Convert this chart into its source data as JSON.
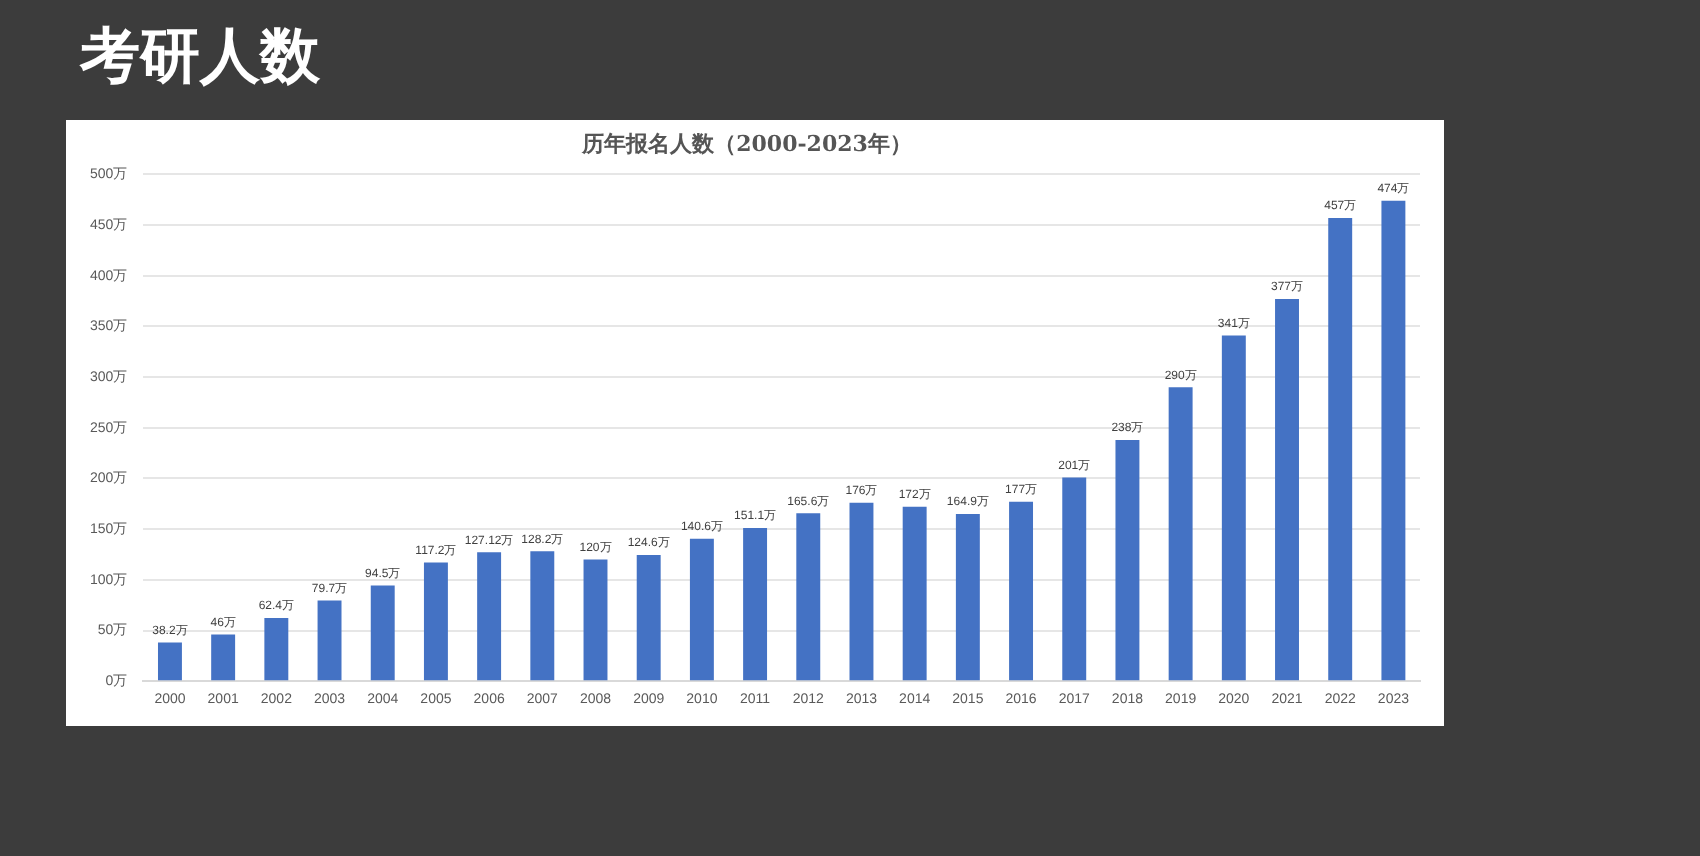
{
  "chart_data": {
    "type": "bar",
    "title": "考研人数",
    "subtitle": "历年报名人数（2000-2023年）",
    "categories": [
      "2000",
      "2001",
      "2002",
      "2003",
      "2004",
      "2005",
      "2006",
      "2007",
      "2008",
      "2009",
      "2010",
      "2011",
      "2012",
      "2013",
      "2014",
      "2015",
      "2016",
      "2017",
      "2018",
      "2019",
      "2020",
      "2021",
      "2022",
      "2023"
    ],
    "values": [
      38.2,
      46,
      62.4,
      79.7,
      94.5,
      117.2,
      127.12,
      128.2,
      120,
      124.6,
      140.6,
      151.1,
      165.6,
      176,
      172,
      164.9,
      177,
      201,
      238,
      290,
      341,
      377,
      457,
      474
    ],
    "value_labels": [
      "38.2万",
      "46万",
      "62.4万",
      "79.7万",
      "94.5万",
      "117.2万",
      "127.12万",
      "128.2万",
      "120万",
      "124.6万",
      "140.6万",
      "151.1万",
      "165.6万",
      "176万",
      "172万",
      "164.9万",
      "177万",
      "201万",
      "238万",
      "290万",
      "341万",
      "377万",
      "457万",
      "474万"
    ],
    "color": "#4472c4",
    "ylim": [
      0,
      500
    ],
    "yticks": [
      {
        "value": 0,
        "label": "0万"
      },
      {
        "value": 50,
        "label": "50万"
      },
      {
        "value": 100,
        "label": "100万"
      },
      {
        "value": 150,
        "label": "150万"
      },
      {
        "value": 200,
        "label": "200万"
      },
      {
        "value": 250,
        "label": "250万"
      },
      {
        "value": 300,
        "label": "300万"
      },
      {
        "value": 350,
        "label": "350万"
      },
      {
        "value": 400,
        "label": "400万"
      },
      {
        "value": 450,
        "label": "450万"
      },
      {
        "value": 500,
        "label": "500万"
      }
    ],
    "grid": "y",
    "legend": false
  }
}
